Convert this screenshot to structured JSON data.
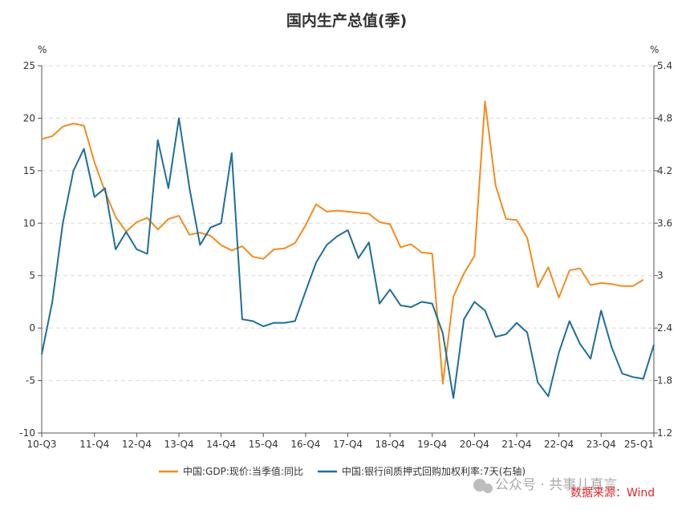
{
  "chart_data": {
    "type": "line",
    "title": "国内生产总值(季)",
    "left_unit": "%",
    "right_unit": "%",
    "x_tick_labels": [
      "10-Q3",
      "11-Q4",
      "12-Q4",
      "13-Q4",
      "14-Q4",
      "15-Q4",
      "16-Q4",
      "17-Q4",
      "18-Q4",
      "19-Q4",
      "20-Q4",
      "21-Q4",
      "22-Q4",
      "23-Q4",
      "25-Q1"
    ],
    "x_tick_index": [
      0,
      5,
      9,
      13,
      17,
      21,
      25,
      29,
      33,
      37,
      41,
      45,
      49,
      53,
      58
    ],
    "y_left": {
      "min": -10,
      "max": 25,
      "ticks": [
        -10,
        -5,
        0,
        5,
        10,
        15,
        20,
        25
      ]
    },
    "y_right": {
      "min": 1.2,
      "max": 5.4,
      "ticks": [
        "1.2",
        "1.8",
        "2.4",
        "3",
        "3.6",
        "4.2",
        "4.8",
        "5.4"
      ]
    },
    "grid": true,
    "legend_position": "bottom",
    "series": [
      {
        "name": "中国:GDP:现价:当季值:同比",
        "axis": "left",
        "color": "#f28c1e",
        "values": [
          18.0,
          18.3,
          19.2,
          19.5,
          19.3,
          15.8,
          13.0,
          10.6,
          9.2,
          10.1,
          10.5,
          9.4,
          10.4,
          10.7,
          8.9,
          9.1,
          8.8,
          7.9,
          7.4,
          7.8,
          6.8,
          6.6,
          7.5,
          7.6,
          8.1,
          9.8,
          11.8,
          11.1,
          11.2,
          11.1,
          11.0,
          10.9,
          10.1,
          9.9,
          7.7,
          8.0,
          7.2,
          7.1,
          -5.3,
          3.0,
          5.2,
          6.9,
          21.6,
          13.6,
          10.4,
          10.3,
          8.6,
          3.9,
          5.8,
          2.9,
          5.5,
          5.7,
          4.1,
          4.3,
          4.2,
          4.0,
          4.0,
          4.6,
          null
        ]
      },
      {
        "name": "中国:银行间质押式回购加权利率:7天(右轴)",
        "axis": "right",
        "color": "#1f6e99",
        "values": [
          2.1,
          2.7,
          3.6,
          4.2,
          4.45,
          3.9,
          4.0,
          3.3,
          3.5,
          3.3,
          3.25,
          4.55,
          4.0,
          4.8,
          4.0,
          3.35,
          3.55,
          3.6,
          4.4,
          2.5,
          2.48,
          2.42,
          2.46,
          2.46,
          2.48,
          2.82,
          3.15,
          3.35,
          3.45,
          3.52,
          3.2,
          3.38,
          2.68,
          2.84,
          2.66,
          2.64,
          2.7,
          2.68,
          2.34,
          1.6,
          2.5,
          2.7,
          2.6,
          2.3,
          2.33,
          2.46,
          2.35,
          1.78,
          1.62,
          2.12,
          2.48,
          2.22,
          2.05,
          2.6,
          2.18,
          1.88,
          1.84,
          1.82,
          2.21
        ]
      }
    ]
  },
  "source_label": "数据来源：Wind",
  "watermark_label": "公众号 · 共事儿真言"
}
